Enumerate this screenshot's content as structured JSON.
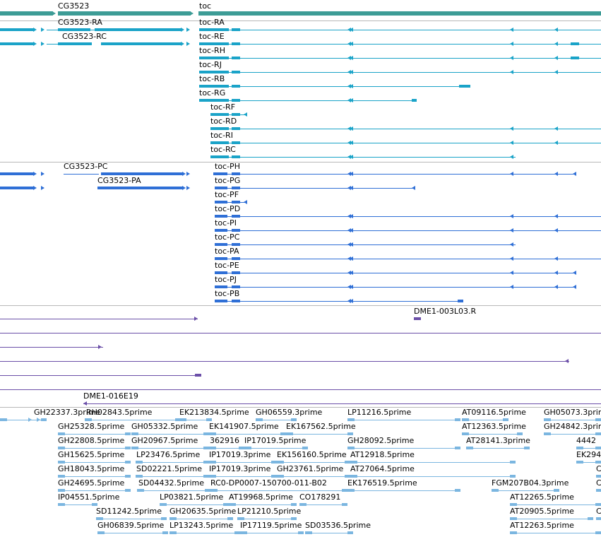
{
  "colors": {
    "gene": "#3d9c96",
    "transcript": "#1aa3c8",
    "protein": "#2f6fd6",
    "clone": "#6b4fa8",
    "est": "#7bb6e0",
    "separator": "#b8b8b8"
  },
  "tracks": {
    "genes": [
      {
        "name": "CG3523"
      },
      {
        "name": "toc"
      }
    ],
    "transcripts": [
      {
        "name": "CG3523-RA"
      },
      {
        "name": "CG3523-RC"
      },
      {
        "name": "toc-RA"
      },
      {
        "name": "toc-RE"
      },
      {
        "name": "toc-RH"
      },
      {
        "name": "toc-RJ"
      },
      {
        "name": "toc-RB"
      },
      {
        "name": "toc-RG"
      },
      {
        "name": "toc-RF"
      },
      {
        "name": "toc-RD"
      },
      {
        "name": "toc-RI"
      },
      {
        "name": "toc-RC"
      }
    ],
    "proteins": [
      {
        "name": "CG3523-PC"
      },
      {
        "name": "CG3523-PA"
      },
      {
        "name": "toc-PH"
      },
      {
        "name": "toc-PG"
      },
      {
        "name": "toc-PF"
      },
      {
        "name": "toc-PD"
      },
      {
        "name": "toc-PI"
      },
      {
        "name": "toc-PC"
      },
      {
        "name": "toc-PA"
      },
      {
        "name": "toc-PE"
      },
      {
        "name": "toc-PJ"
      },
      {
        "name": "toc-PB"
      }
    ],
    "clones": [
      {
        "name": "DME1-003L03.R"
      },
      {
        "name": "DME1-016E19"
      }
    ],
    "ests": [
      {
        "name": "GH22337.3prime"
      },
      {
        "name": "RH02843.5prime"
      },
      {
        "name": "EK213834.5prime"
      },
      {
        "name": "GH06559.3prime"
      },
      {
        "name": "LP11216.5prime"
      },
      {
        "name": "AT09116.5prime"
      },
      {
        "name": "GH05073.3prime"
      },
      {
        "name": "GH25328.5prime"
      },
      {
        "name": "GH05332.5prime"
      },
      {
        "name": "EK141907.5prime"
      },
      {
        "name": "EK167562.5prime"
      },
      {
        "name": "AT12363.5prime"
      },
      {
        "name": "GH24842.3prime"
      },
      {
        "name": "GH22808.5prime"
      },
      {
        "name": "GH20967.5prime"
      },
      {
        "name": "362916"
      },
      {
        "name": "IP17019.5prime"
      },
      {
        "name": "GH28092.5prime"
      },
      {
        "name": "AT28141.3prime"
      },
      {
        "name": "4442"
      },
      {
        "name": "GH15625.5prime"
      },
      {
        "name": "LP23476.5prime"
      },
      {
        "name": "IP17019.3prime"
      },
      {
        "name": "EK156160.5prime"
      },
      {
        "name": "AT12918.5prime"
      },
      {
        "name": "EK294"
      },
      {
        "name": "GH18043.5prime"
      },
      {
        "name": "SD02221.5prime"
      },
      {
        "name": "IP17019.3prime"
      },
      {
        "name": "GH23761.5prime"
      },
      {
        "name": "AT27064.5prime"
      },
      {
        "name": "C"
      },
      {
        "name": "GH24695.5prime"
      },
      {
        "name": "SD04432.5prime"
      },
      {
        "name": "RC0-DP0007-150700-011-B02"
      },
      {
        "name": "EK176519.5prime"
      },
      {
        "name": "FGM207B04.3prime"
      },
      {
        "name": "C"
      },
      {
        "name": "IP04551.5prime"
      },
      {
        "name": "LP03821.5prime"
      },
      {
        "name": "AT19968.5prime"
      },
      {
        "name": "CO178291"
      },
      {
        "name": "AT12265.5prime"
      },
      {
        "name": "SD11242.5prime"
      },
      {
        "name": "GH20635.5prime"
      },
      {
        "name": "LP21210.5prime"
      },
      {
        "name": "AT20905.5prime"
      },
      {
        "name": "C"
      },
      {
        "name": "GH06839.5prime"
      },
      {
        "name": "LP13243.5prime"
      },
      {
        "name": "IP17119.5prime"
      },
      {
        "name": "SD03536.5prime"
      },
      {
        "name": "AT12263.5prime"
      }
    ]
  }
}
